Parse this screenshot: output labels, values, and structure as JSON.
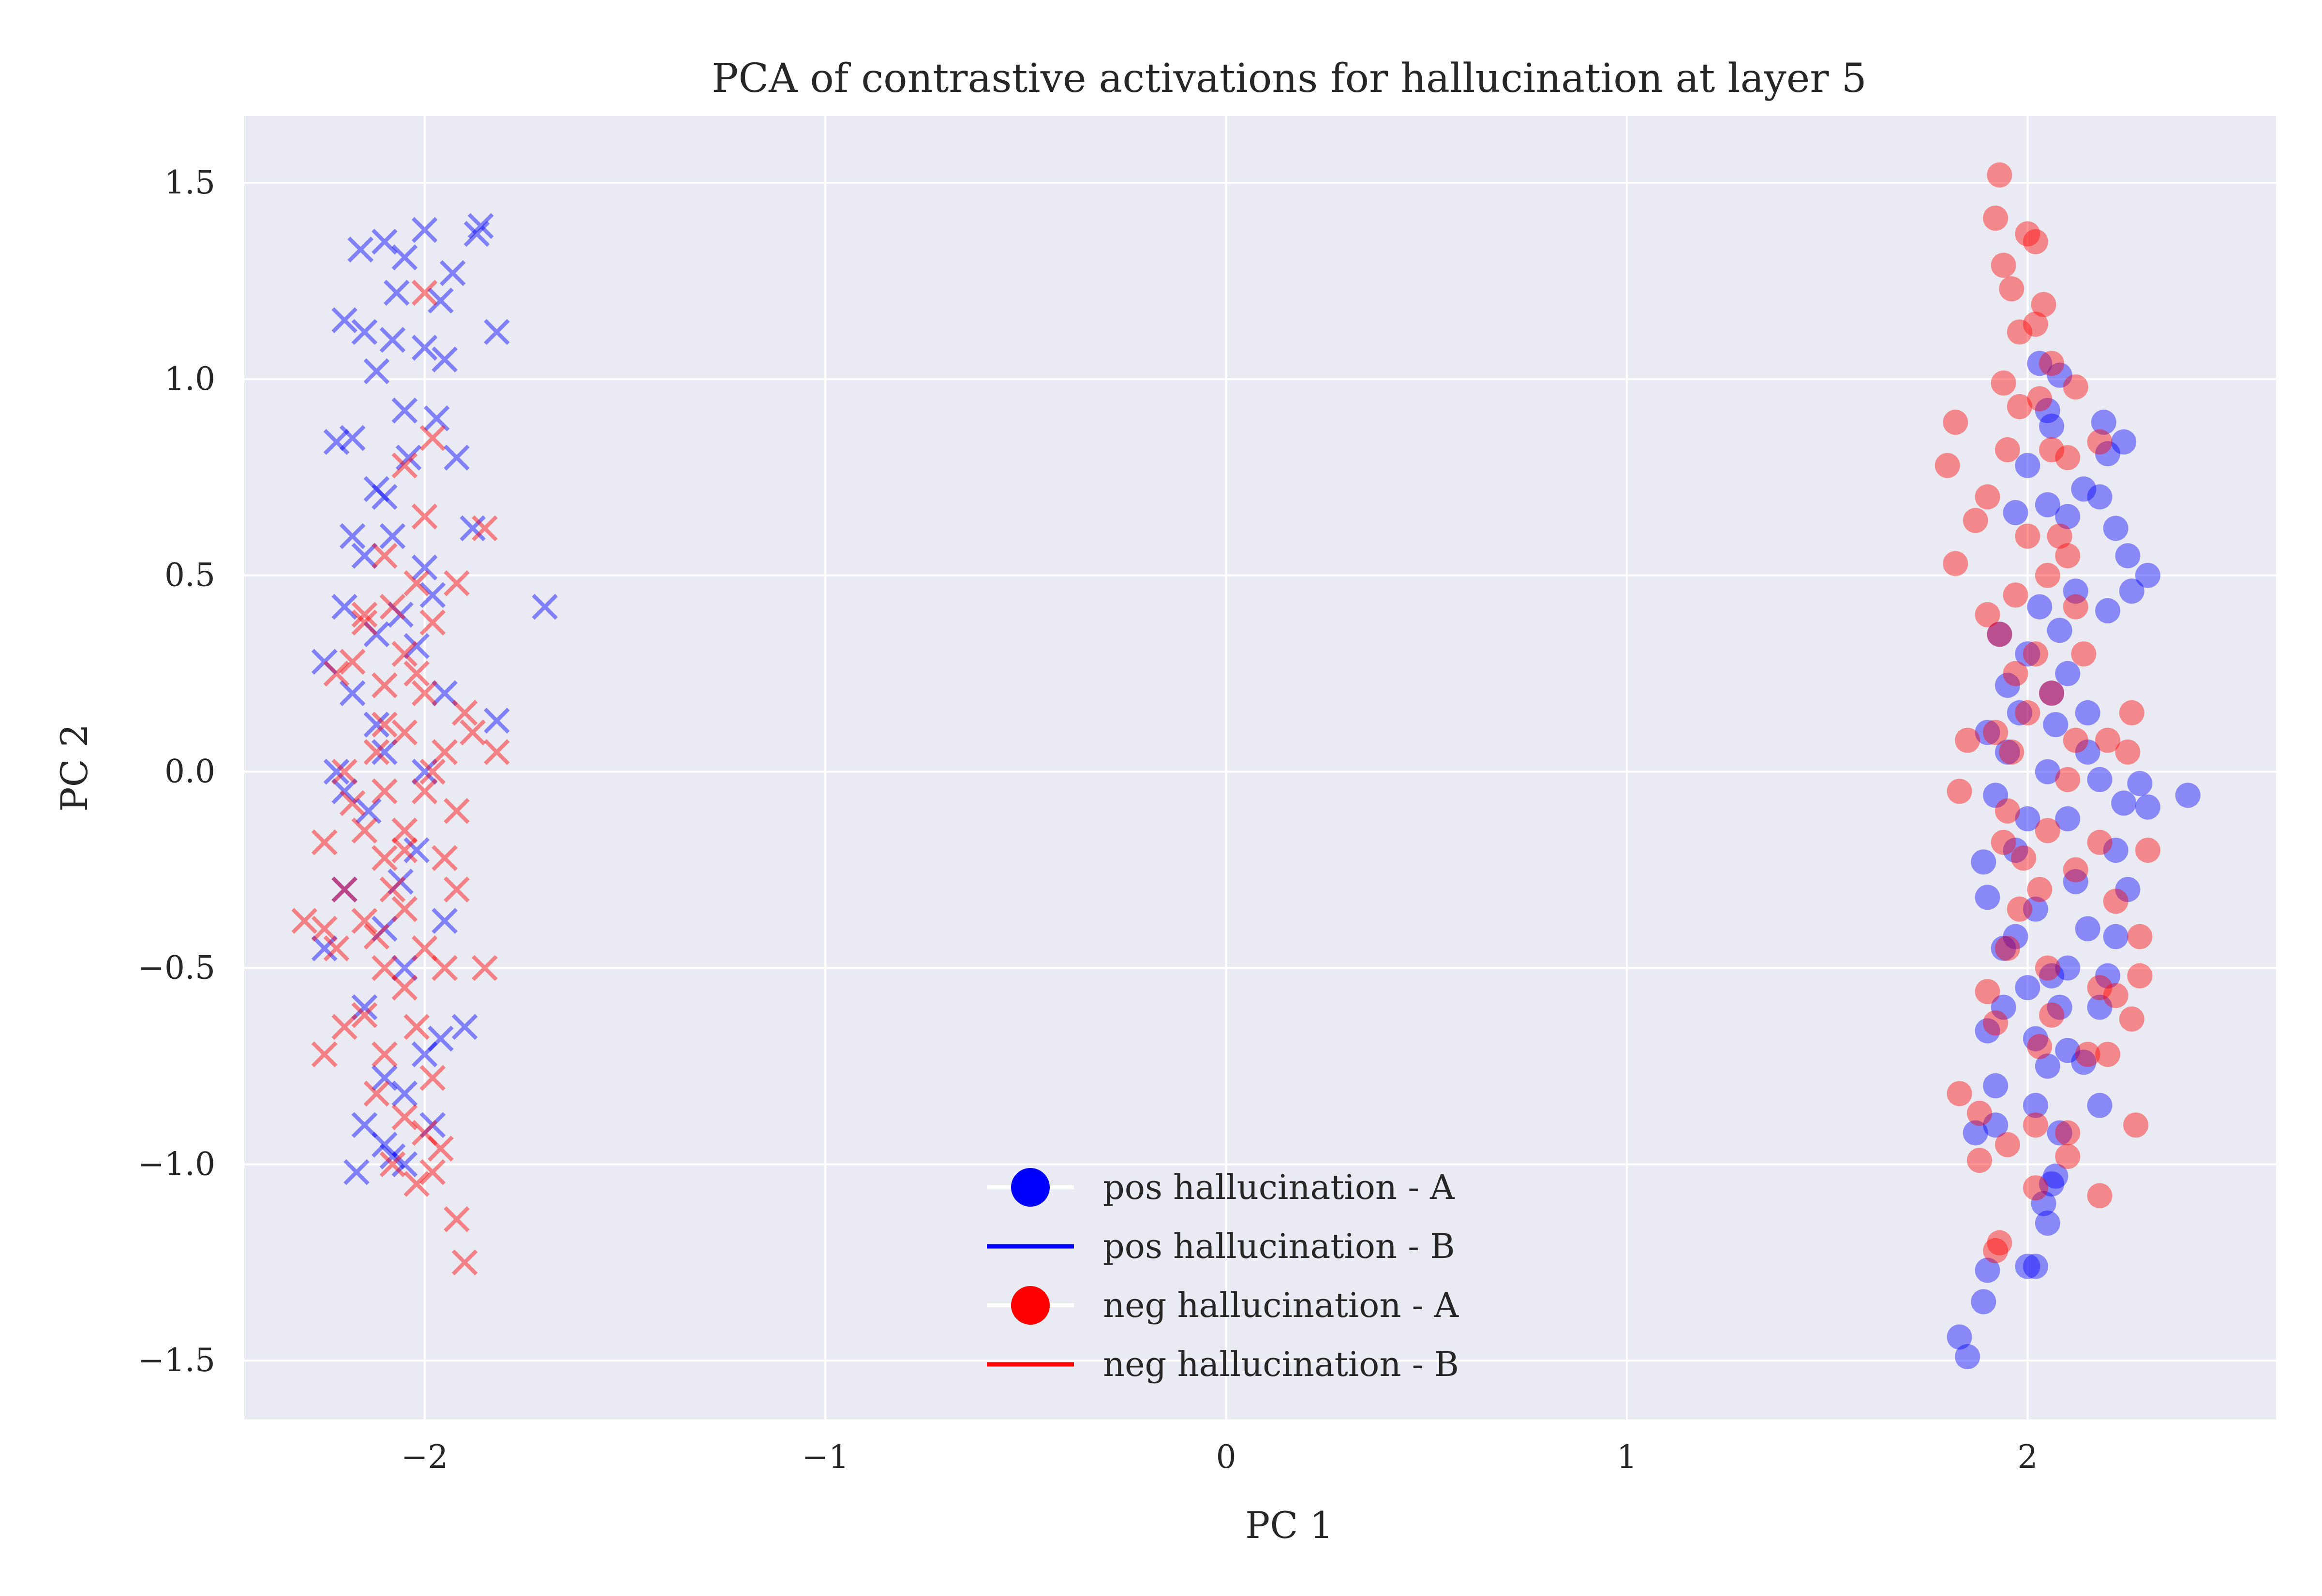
{
  "chart_data": {
    "type": "scatter",
    "title": "PCA of contrastive activations for hallucination at layer 5",
    "xlabel": "PC 1",
    "ylabel": "PC 2",
    "xlim": [
      -2.45,
      2.62
    ],
    "ylim": [
      -1.65,
      1.67
    ],
    "xticks": [
      -2,
      -1,
      0,
      1,
      2
    ],
    "xtick_labels": [
      "−2",
      "−1",
      "0",
      "1",
      "2"
    ],
    "yticks": [
      -1.5,
      -1.0,
      -0.5,
      0.0,
      0.5,
      1.0,
      1.5
    ],
    "ytick_labels": [
      "−1.5",
      "−1.0",
      "−0.5",
      "0.0",
      "0.5",
      "1.0",
      "1.5"
    ],
    "grid": true,
    "legend_position": "lower center",
    "colors": {
      "pos": "#0000ff",
      "neg": "#ff0000",
      "background": "#eaeaf2",
      "grid": "#ffffff"
    },
    "legend": [
      {
        "label": "pos hallucination - A",
        "color": "#0000ff",
        "marker": "circle"
      },
      {
        "label": "pos hallucination - B",
        "color": "#0000ff",
        "marker": "line"
      },
      {
        "label": "neg hallucination - A",
        "color": "#ff0000",
        "marker": "circle"
      },
      {
        "label": "neg hallucination - B",
        "color": "#ff0000",
        "marker": "line"
      }
    ],
    "series": [
      {
        "name": "pos hallucination - A",
        "marker": "o",
        "color": "#0000ff",
        "points": [
          [
            1.83,
            -1.44
          ],
          [
            1.85,
            -1.49
          ],
          [
            1.89,
            -1.35
          ],
          [
            1.9,
            -1.27
          ],
          [
            2.0,
            -1.26
          ],
          [
            2.02,
            -1.26
          ],
          [
            2.05,
            -1.15
          ],
          [
            2.06,
            -1.05
          ],
          [
            2.04,
            -1.1
          ],
          [
            2.07,
            -1.03
          ],
          [
            1.87,
            -0.92
          ],
          [
            1.92,
            -0.9
          ],
          [
            2.08,
            -0.92
          ],
          [
            2.18,
            -0.85
          ],
          [
            1.92,
            -0.8
          ],
          [
            2.05,
            -0.75
          ],
          [
            2.14,
            -0.74
          ],
          [
            2.1,
            -0.71
          ],
          [
            2.02,
            -0.68
          ],
          [
            1.9,
            -0.66
          ],
          [
            2.08,
            -0.6
          ],
          [
            2.18,
            -0.6
          ],
          [
            2.2,
            -0.52
          ],
          [
            2.06,
            -0.52
          ],
          [
            2.0,
            -0.55
          ],
          [
            1.94,
            -0.45
          ],
          [
            2.15,
            -0.4
          ],
          [
            2.22,
            -0.42
          ],
          [
            2.25,
            -0.3
          ],
          [
            1.9,
            -0.32
          ],
          [
            1.89,
            -0.23
          ],
          [
            2.0,
            -0.12
          ],
          [
            1.92,
            -0.06
          ],
          [
            2.24,
            -0.08
          ],
          [
            2.3,
            -0.09
          ],
          [
            2.4,
            -0.06
          ],
          [
            2.28,
            -0.03
          ],
          [
            2.18,
            -0.02
          ],
          [
            2.05,
            0.0
          ],
          [
            1.95,
            0.05
          ],
          [
            1.9,
            0.1
          ],
          [
            2.15,
            0.15
          ],
          [
            2.06,
            0.2
          ],
          [
            2.1,
            0.25
          ],
          [
            2.0,
            0.3
          ],
          [
            1.93,
            0.35
          ],
          [
            2.2,
            0.41
          ],
          [
            2.08,
            0.36
          ],
          [
            2.12,
            0.46
          ],
          [
            2.3,
            0.5
          ],
          [
            2.26,
            0.46
          ],
          [
            2.25,
            0.55
          ],
          [
            2.22,
            0.62
          ],
          [
            2.18,
            0.7
          ],
          [
            2.14,
            0.72
          ],
          [
            2.1,
            0.65
          ],
          [
            2.05,
            0.68
          ],
          [
            2.0,
            0.78
          ],
          [
            2.2,
            0.81
          ],
          [
            2.24,
            0.84
          ],
          [
            2.19,
            0.89
          ],
          [
            2.06,
            0.88
          ],
          [
            2.05,
            0.92
          ],
          [
            2.08,
            1.01
          ],
          [
            2.03,
            1.04
          ],
          [
            1.97,
            0.66
          ],
          [
            2.03,
            0.42
          ],
          [
            1.97,
            -0.2
          ],
          [
            2.12,
            -0.28
          ],
          [
            1.97,
            -0.42
          ],
          [
            2.1,
            -0.5
          ],
          [
            1.94,
            -0.6
          ],
          [
            2.02,
            -0.85
          ],
          [
            2.15,
            0.05
          ],
          [
            2.22,
            -0.2
          ],
          [
            2.07,
            0.12
          ],
          [
            1.98,
            0.15
          ],
          [
            2.1,
            -0.12
          ],
          [
            2.02,
            -0.35
          ],
          [
            1.95,
            0.22
          ]
        ]
      },
      {
        "name": "neg hallucination - A",
        "marker": "o",
        "color": "#ff0000",
        "points": [
          [
            1.93,
            1.52
          ],
          [
            1.92,
            1.41
          ],
          [
            2.0,
            1.37
          ],
          [
            2.02,
            1.35
          ],
          [
            1.94,
            1.29
          ],
          [
            1.96,
            1.23
          ],
          [
            2.04,
            1.19
          ],
          [
            2.02,
            1.14
          ],
          [
            1.98,
            1.12
          ],
          [
            2.06,
            1.04
          ],
          [
            1.94,
            0.99
          ],
          [
            2.03,
            0.95
          ],
          [
            1.98,
            0.93
          ],
          [
            1.82,
            0.89
          ],
          [
            1.8,
            0.78
          ],
          [
            1.95,
            0.82
          ],
          [
            2.06,
            0.82
          ],
          [
            2.1,
            0.8
          ],
          [
            2.18,
            0.84
          ],
          [
            1.9,
            0.7
          ],
          [
            1.87,
            0.64
          ],
          [
            2.0,
            0.6
          ],
          [
            2.1,
            0.55
          ],
          [
            2.05,
            0.5
          ],
          [
            1.82,
            0.53
          ],
          [
            1.97,
            0.45
          ],
          [
            2.12,
            0.42
          ],
          [
            1.93,
            0.35
          ],
          [
            2.02,
            0.3
          ],
          [
            1.97,
            0.25
          ],
          [
            2.06,
            0.2
          ],
          [
            2.0,
            0.15
          ],
          [
            1.92,
            0.1
          ],
          [
            1.85,
            0.08
          ],
          [
            2.12,
            0.08
          ],
          [
            2.2,
            0.08
          ],
          [
            2.26,
            0.15
          ],
          [
            2.25,
            0.05
          ],
          [
            1.83,
            -0.05
          ],
          [
            1.95,
            -0.1
          ],
          [
            2.05,
            -0.15
          ],
          [
            2.18,
            -0.18
          ],
          [
            2.3,
            -0.2
          ],
          [
            1.99,
            -0.22
          ],
          [
            2.12,
            -0.25
          ],
          [
            2.22,
            -0.33
          ],
          [
            2.28,
            -0.42
          ],
          [
            1.95,
            -0.45
          ],
          [
            2.05,
            -0.5
          ],
          [
            2.18,
            -0.55
          ],
          [
            2.28,
            -0.52
          ],
          [
            1.9,
            -0.56
          ],
          [
            1.92,
            -0.64
          ],
          [
            2.03,
            -0.7
          ],
          [
            2.15,
            -0.72
          ],
          [
            2.2,
            -0.72
          ],
          [
            1.83,
            -0.82
          ],
          [
            1.88,
            -0.87
          ],
          [
            2.02,
            -0.9
          ],
          [
            2.1,
            -0.92
          ],
          [
            1.95,
            -0.95
          ],
          [
            2.1,
            -0.98
          ],
          [
            2.27,
            -0.9
          ],
          [
            1.88,
            -0.99
          ],
          [
            2.02,
            -1.06
          ],
          [
            2.18,
            -1.08
          ],
          [
            1.93,
            -1.2
          ],
          [
            1.92,
            -1.22
          ],
          [
            2.26,
            -0.63
          ],
          [
            2.22,
            -0.57
          ],
          [
            1.98,
            -0.35
          ],
          [
            2.08,
            0.6
          ],
          [
            2.12,
            0.98
          ],
          [
            1.9,
            0.4
          ],
          [
            2.1,
            -0.02
          ],
          [
            1.96,
            0.05
          ],
          [
            2.03,
            -0.3
          ],
          [
            1.94,
            -0.18
          ],
          [
            2.14,
            0.3
          ],
          [
            2.06,
            -0.62
          ]
        ]
      },
      {
        "name": "pos hallucination - B",
        "marker": "x",
        "color": "#0000ff",
        "points": [
          [
            -1.86,
            1.39
          ],
          [
            -1.87,
            1.37
          ],
          [
            -2.0,
            1.38
          ],
          [
            -2.05,
            1.31
          ],
          [
            -2.1,
            1.35
          ],
          [
            -2.16,
            1.33
          ],
          [
            -1.93,
            1.27
          ],
          [
            -1.96,
            1.2
          ],
          [
            -2.07,
            1.22
          ],
          [
            -2.15,
            1.12
          ],
          [
            -2.2,
            1.15
          ],
          [
            -1.82,
            1.12
          ],
          [
            -2.08,
            1.1
          ],
          [
            -2.0,
            1.08
          ],
          [
            -1.95,
            1.05
          ],
          [
            -2.12,
            1.02
          ],
          [
            -1.97,
            0.9
          ],
          [
            -2.05,
            0.92
          ],
          [
            -2.18,
            0.85
          ],
          [
            -2.22,
            0.84
          ],
          [
            -2.04,
            0.8
          ],
          [
            -1.92,
            0.8
          ],
          [
            -2.12,
            0.72
          ],
          [
            -2.1,
            0.7
          ],
          [
            -1.88,
            0.62
          ],
          [
            -2.08,
            0.6
          ],
          [
            -2.15,
            0.55
          ],
          [
            -2.0,
            0.52
          ],
          [
            -1.7,
            0.42
          ],
          [
            -2.06,
            0.4
          ],
          [
            -2.2,
            0.42
          ],
          [
            -2.12,
            0.35
          ],
          [
            -2.02,
            0.32
          ],
          [
            -2.25,
            0.28
          ],
          [
            -2.18,
            0.2
          ],
          [
            -1.95,
            0.2
          ],
          [
            -1.82,
            0.13
          ],
          [
            -2.1,
            0.05
          ],
          [
            -2.0,
            0.0
          ],
          [
            -2.2,
            -0.05
          ],
          [
            -2.14,
            -0.1
          ],
          [
            -2.02,
            -0.2
          ],
          [
            -2.2,
            -0.3
          ],
          [
            -2.1,
            -0.4
          ],
          [
            -2.25,
            -0.45
          ],
          [
            -2.05,
            -0.5
          ],
          [
            -2.15,
            -0.6
          ],
          [
            -1.9,
            -0.65
          ],
          [
            -1.96,
            -0.68
          ],
          [
            -2.0,
            -0.72
          ],
          [
            -2.1,
            -0.78
          ],
          [
            -2.05,
            -0.82
          ],
          [
            -2.15,
            -0.9
          ],
          [
            -1.98,
            -0.9
          ],
          [
            -2.1,
            -0.95
          ],
          [
            -2.08,
            -0.98
          ],
          [
            -2.17,
            -1.02
          ],
          [
            -2.05,
            -1.0
          ],
          [
            -1.98,
            0.45
          ],
          [
            -2.22,
            0.0
          ],
          [
            -2.06,
            -0.28
          ],
          [
            -2.12,
            0.12
          ],
          [
            -1.95,
            -0.38
          ],
          [
            -2.18,
            0.6
          ]
        ]
      },
      {
        "name": "neg hallucination - B",
        "marker": "x",
        "color": "#ff0000",
        "points": [
          [
            -2.0,
            1.22
          ],
          [
            -1.98,
            0.85
          ],
          [
            -2.05,
            0.78
          ],
          [
            -2.0,
            0.65
          ],
          [
            -1.85,
            0.62
          ],
          [
            -2.1,
            0.55
          ],
          [
            -2.02,
            0.48
          ],
          [
            -1.92,
            0.48
          ],
          [
            -2.08,
            0.42
          ],
          [
            -2.15,
            0.38
          ],
          [
            -1.98,
            0.38
          ],
          [
            -2.05,
            0.3
          ],
          [
            -2.18,
            0.28
          ],
          [
            -2.22,
            0.25
          ],
          [
            -2.1,
            0.22
          ],
          [
            -2.0,
            0.2
          ],
          [
            -1.9,
            0.15
          ],
          [
            -1.88,
            0.1
          ],
          [
            -2.05,
            0.1
          ],
          [
            -2.12,
            0.05
          ],
          [
            -1.95,
            0.05
          ],
          [
            -1.82,
            0.05
          ],
          [
            -2.2,
            0.0
          ],
          [
            -2.1,
            -0.05
          ],
          [
            -2.0,
            -0.05
          ],
          [
            -1.92,
            -0.1
          ],
          [
            -2.15,
            -0.15
          ],
          [
            -2.05,
            -0.15
          ],
          [
            -2.25,
            -0.18
          ],
          [
            -2.1,
            -0.22
          ],
          [
            -1.95,
            -0.22
          ],
          [
            -1.92,
            -0.3
          ],
          [
            -2.2,
            -0.3
          ],
          [
            -2.05,
            -0.35
          ],
          [
            -2.15,
            -0.38
          ],
          [
            -2.25,
            -0.4
          ],
          [
            -2.22,
            -0.45
          ],
          [
            -2.0,
            -0.45
          ],
          [
            -2.1,
            -0.5
          ],
          [
            -1.85,
            -0.5
          ],
          [
            -1.95,
            -0.5
          ],
          [
            -2.05,
            -0.55
          ],
          [
            -2.15,
            -0.62
          ],
          [
            -2.2,
            -0.65
          ],
          [
            -2.02,
            -0.65
          ],
          [
            -2.25,
            -0.72
          ],
          [
            -2.1,
            -0.72
          ],
          [
            -1.98,
            -0.78
          ],
          [
            -2.12,
            -0.82
          ],
          [
            -2.05,
            -0.88
          ],
          [
            -2.0,
            -0.92
          ],
          [
            -1.96,
            -0.96
          ],
          [
            -2.08,
            -1.0
          ],
          [
            -1.98,
            -1.02
          ],
          [
            -2.02,
            -1.05
          ],
          [
            -1.92,
            -1.14
          ],
          [
            -1.9,
            -1.25
          ],
          [
            -2.3,
            -0.38
          ],
          [
            -2.1,
            0.12
          ],
          [
            -2.05,
            -0.2
          ],
          [
            -2.12,
            -0.42
          ],
          [
            -1.98,
            0.0
          ],
          [
            -2.18,
            -0.08
          ],
          [
            -2.08,
            -0.3
          ],
          [
            -2.02,
            0.25
          ],
          [
            -2.15,
            0.4
          ]
        ]
      }
    ]
  }
}
